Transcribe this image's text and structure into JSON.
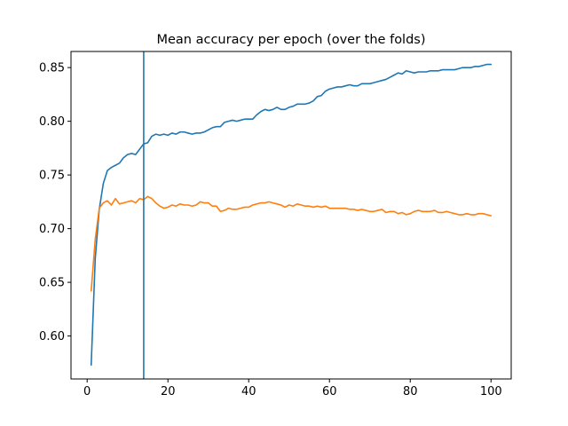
{
  "chart_data": {
    "type": "line",
    "title": "Mean accuracy per epoch (over the folds)",
    "xlabel": "",
    "ylabel": "",
    "xlim": [
      -4,
      105
    ],
    "ylim": [
      0.56,
      0.865
    ],
    "xticks": [
      0,
      20,
      40,
      60,
      80,
      100
    ],
    "yticks": [
      0.6,
      0.65,
      0.7,
      0.75,
      0.8,
      0.85
    ],
    "ytick_labels": [
      "0.60",
      "0.65",
      "0.70",
      "0.75",
      "0.80",
      "0.85"
    ],
    "grid": false,
    "vline": {
      "x": 14,
      "color": "#1f77b4"
    },
    "series": [
      {
        "color": "#1f77b4",
        "x": [
          1,
          2,
          3,
          4,
          5,
          6,
          7,
          8,
          9,
          10,
          11,
          12,
          13,
          14,
          15,
          16,
          17,
          18,
          19,
          20,
          21,
          22,
          23,
          24,
          25,
          26,
          27,
          28,
          29,
          30,
          31,
          32,
          33,
          34,
          35,
          36,
          37,
          38,
          39,
          40,
          41,
          42,
          43,
          44,
          45,
          46,
          47,
          48,
          49,
          50,
          51,
          52,
          53,
          54,
          55,
          56,
          57,
          58,
          59,
          60,
          61,
          62,
          63,
          64,
          65,
          66,
          67,
          68,
          69,
          70,
          71,
          72,
          73,
          74,
          75,
          76,
          77,
          78,
          79,
          80,
          81,
          82,
          83,
          84,
          85,
          86,
          87,
          88,
          89,
          90,
          91,
          92,
          93,
          94,
          95,
          96,
          97,
          98,
          99,
          100
        ],
        "values": [
          0.573,
          0.672,
          0.718,
          0.742,
          0.754,
          0.757,
          0.759,
          0.761,
          0.766,
          0.769,
          0.77,
          0.769,
          0.774,
          0.779,
          0.78,
          0.786,
          0.788,
          0.787,
          0.788,
          0.787,
          0.789,
          0.788,
          0.79,
          0.79,
          0.789,
          0.788,
          0.789,
          0.789,
          0.79,
          0.792,
          0.794,
          0.795,
          0.795,
          0.799,
          0.8,
          0.801,
          0.8,
          0.801,
          0.802,
          0.802,
          0.802,
          0.806,
          0.809,
          0.811,
          0.81,
          0.811,
          0.813,
          0.811,
          0.811,
          0.813,
          0.814,
          0.816,
          0.816,
          0.816,
          0.817,
          0.819,
          0.823,
          0.824,
          0.828,
          0.83,
          0.831,
          0.832,
          0.832,
          0.833,
          0.834,
          0.833,
          0.833,
          0.835,
          0.835,
          0.835,
          0.836,
          0.837,
          0.838,
          0.839,
          0.841,
          0.843,
          0.845,
          0.844,
          0.847,
          0.846,
          0.845,
          0.846,
          0.846,
          0.846,
          0.847,
          0.847,
          0.847,
          0.848,
          0.848,
          0.848,
          0.848,
          0.849,
          0.85,
          0.85,
          0.85,
          0.851,
          0.851,
          0.852,
          0.853,
          0.853
        ]
      },
      {
        "color": "#ff7f0e",
        "x": [
          1,
          2,
          3,
          4,
          5,
          6,
          7,
          8,
          9,
          10,
          11,
          12,
          13,
          14,
          15,
          16,
          17,
          18,
          19,
          20,
          21,
          22,
          23,
          24,
          25,
          26,
          27,
          28,
          29,
          30,
          31,
          32,
          33,
          34,
          35,
          36,
          37,
          38,
          39,
          40,
          41,
          42,
          43,
          44,
          45,
          46,
          47,
          48,
          49,
          50,
          51,
          52,
          53,
          54,
          55,
          56,
          57,
          58,
          59,
          60,
          61,
          62,
          63,
          64,
          65,
          66,
          67,
          68,
          69,
          70,
          71,
          72,
          73,
          74,
          75,
          76,
          77,
          78,
          79,
          80,
          81,
          82,
          83,
          84,
          85,
          86,
          87,
          88,
          89,
          90,
          91,
          92,
          93,
          94,
          95,
          96,
          97,
          98,
          99,
          100
        ],
        "values": [
          0.642,
          0.69,
          0.719,
          0.724,
          0.726,
          0.722,
          0.728,
          0.723,
          0.724,
          0.725,
          0.726,
          0.724,
          0.728,
          0.727,
          0.73,
          0.728,
          0.724,
          0.721,
          0.719,
          0.72,
          0.722,
          0.721,
          0.723,
          0.722,
          0.722,
          0.721,
          0.722,
          0.725,
          0.724,
          0.724,
          0.721,
          0.721,
          0.716,
          0.717,
          0.719,
          0.718,
          0.718,
          0.719,
          0.72,
          0.72,
          0.722,
          0.723,
          0.724,
          0.724,
          0.725,
          0.724,
          0.723,
          0.722,
          0.72,
          0.722,
          0.721,
          0.723,
          0.722,
          0.721,
          0.721,
          0.72,
          0.721,
          0.72,
          0.721,
          0.719,
          0.719,
          0.719,
          0.719,
          0.719,
          0.718,
          0.718,
          0.717,
          0.718,
          0.717,
          0.716,
          0.716,
          0.717,
          0.718,
          0.715,
          0.716,
          0.716,
          0.714,
          0.715,
          0.713,
          0.714,
          0.716,
          0.717,
          0.716,
          0.716,
          0.716,
          0.717,
          0.715,
          0.715,
          0.716,
          0.715,
          0.714,
          0.713,
          0.713,
          0.714,
          0.713,
          0.713,
          0.714,
          0.714,
          0.713,
          0.712
        ]
      }
    ]
  }
}
